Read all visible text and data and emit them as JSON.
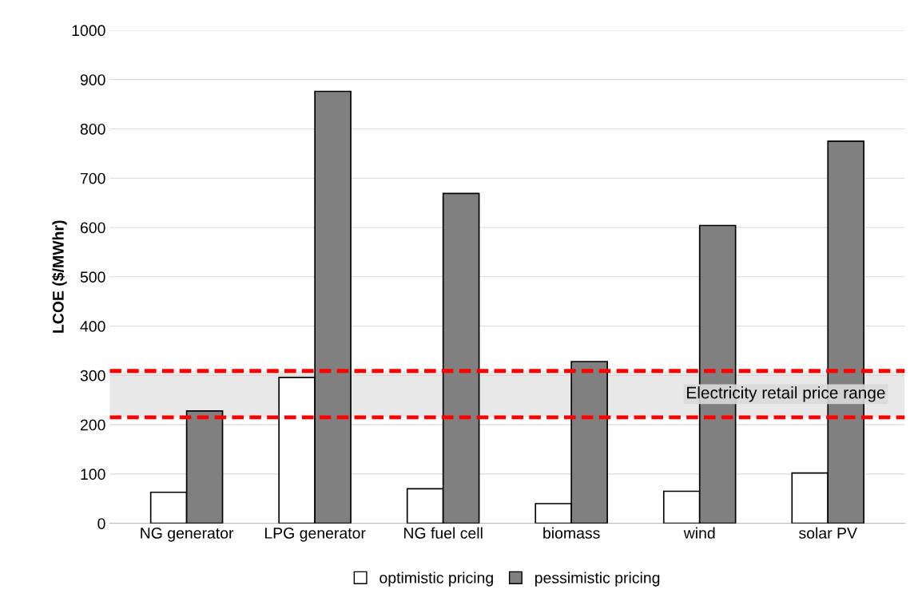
{
  "chart_data": {
    "type": "bar",
    "ylabel": "LCOE ($/MWhr)",
    "categories": [
      "NG generator",
      "LPG generator",
      "NG fuel cell",
      "biomass",
      "wind",
      "solar PV"
    ],
    "series": [
      {
        "name": "optimistic pricing",
        "color": "#ffffff",
        "values": [
          63,
          296,
          70,
          40,
          65,
          102
        ]
      },
      {
        "name": "pessimistic pricing",
        "color": "#808080",
        "values": [
          228,
          876,
          669,
          328,
          604,
          775
        ]
      }
    ],
    "ylim": [
      0,
      1000
    ],
    "yticks": [
      0,
      100,
      200,
      300,
      400,
      500,
      600,
      700,
      800,
      900,
      1000
    ],
    "grid": "y",
    "legend": "bottom",
    "ref_lines": [
      {
        "axis": "y",
        "value": 309,
        "color": "#ff0000",
        "line_style": "dashed"
      },
      {
        "axis": "y",
        "value": 215,
        "color": "#ff0000",
        "line_style": "dashed"
      }
    ],
    "bands": [
      {
        "axis": "y",
        "from": 215,
        "to": 309,
        "label": "Electricity retail price range",
        "color": "#d9d9d9"
      }
    ]
  }
}
